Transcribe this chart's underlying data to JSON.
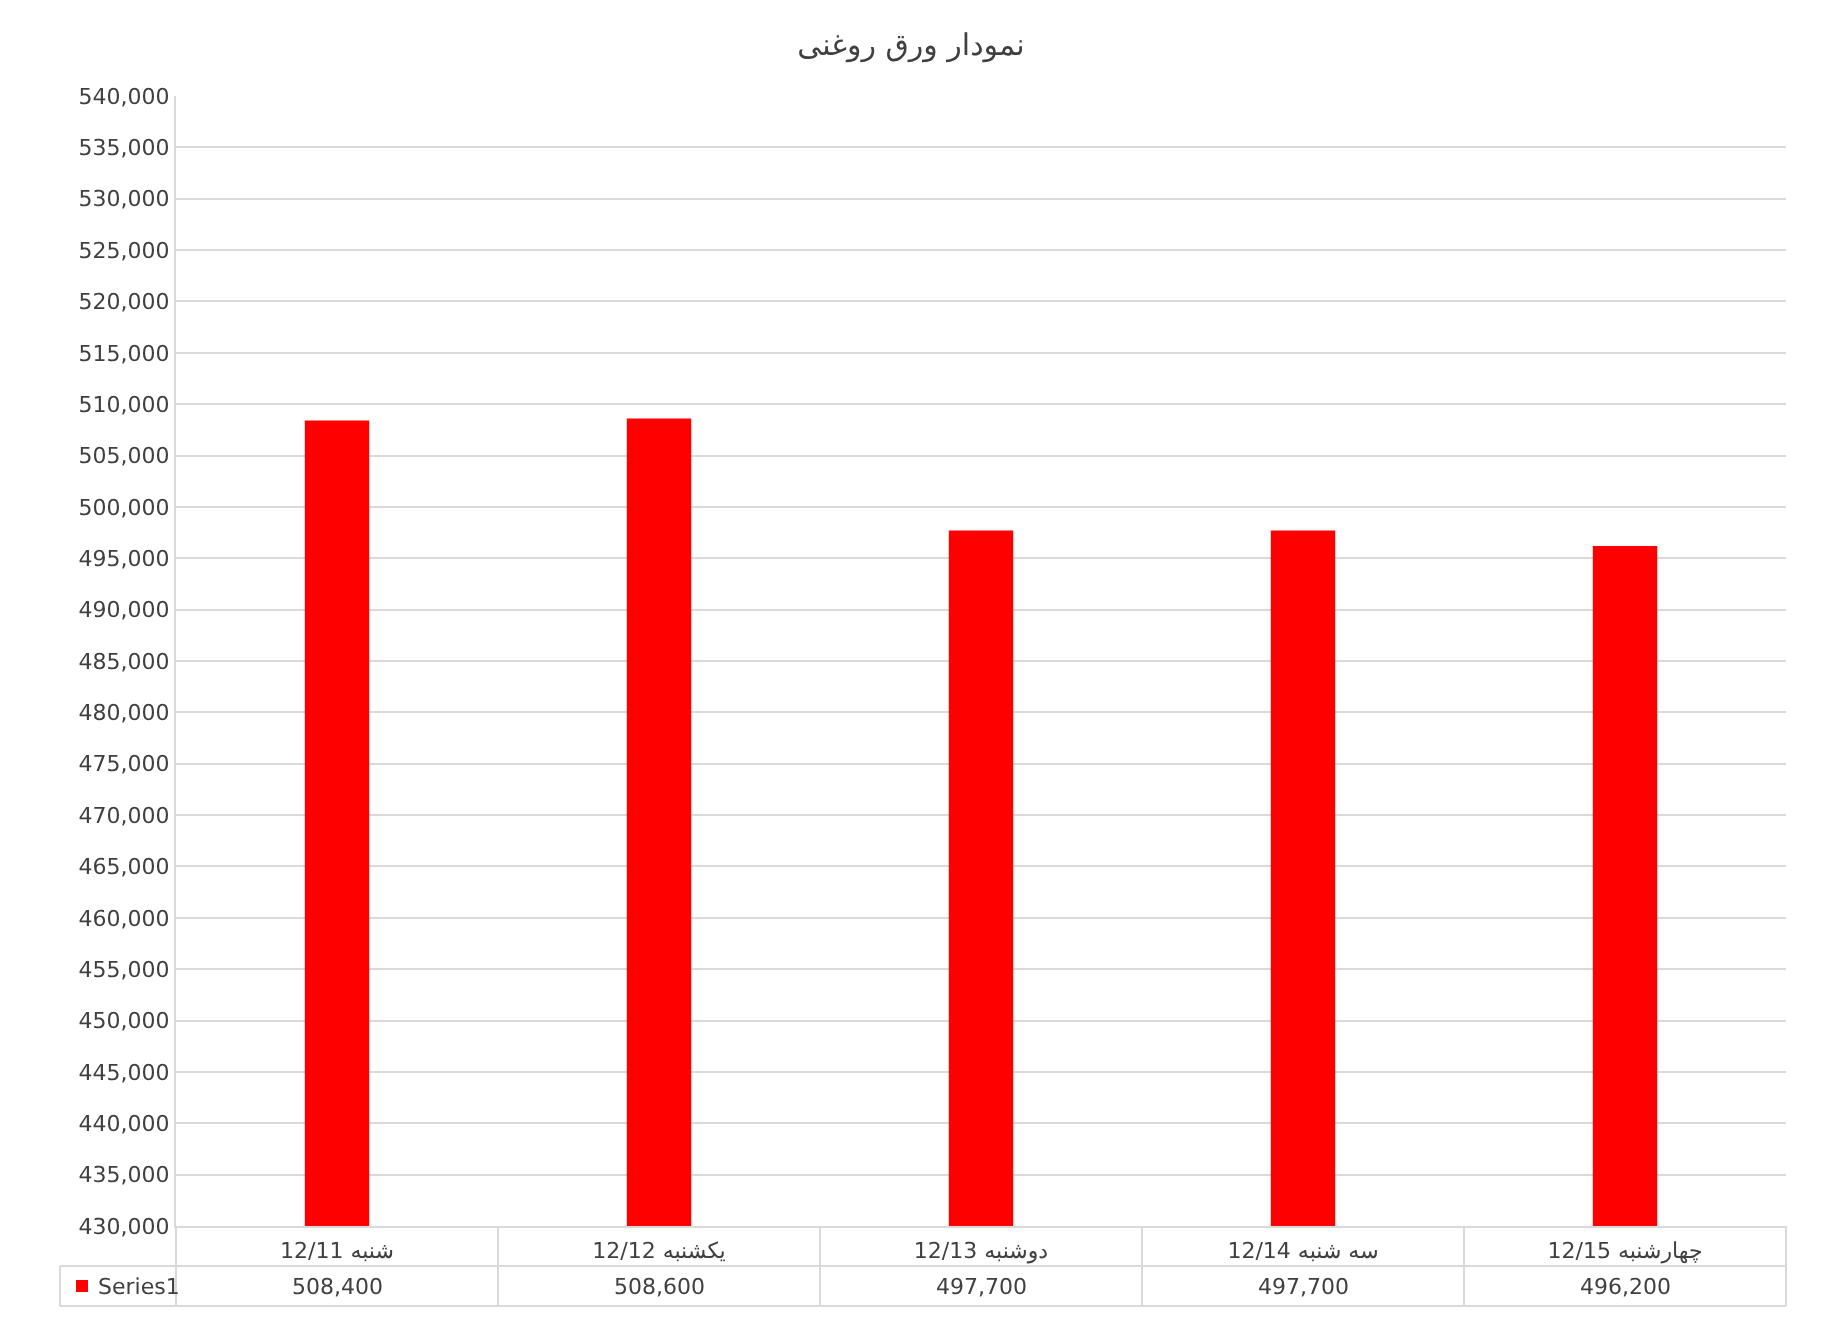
{
  "chart_data": {
    "type": "bar",
    "title": "نمودار ورق روغنی",
    "categories": [
      "12/11 شنبه",
      "12/12 یکشنبه",
      "12/13 دوشنبه",
      "12/14 سه شنبه",
      "12/15 چهارشنبه"
    ],
    "series": [
      {
        "name": "Series1",
        "color": "#ff0000",
        "values": [
          508400,
          508600,
          497700,
          497700,
          496200
        ],
        "value_labels": [
          "508,400",
          "508,600",
          "497,700",
          "497,700",
          "496,200"
        ]
      }
    ],
    "ylim": [
      430000,
      540000
    ],
    "yticks": [
      {
        "value": 430000,
        "label": "430,000"
      },
      {
        "value": 435000,
        "label": "435,000"
      },
      {
        "value": 440000,
        "label": "440,000"
      },
      {
        "value": 445000,
        "label": "445,000"
      },
      {
        "value": 450000,
        "label": "450,000"
      },
      {
        "value": 455000,
        "label": "455,000"
      },
      {
        "value": 460000,
        "label": "460,000"
      },
      {
        "value": 465000,
        "label": "465,000"
      },
      {
        "value": 470000,
        "label": "470,000"
      },
      {
        "value": 475000,
        "label": "475,000"
      },
      {
        "value": 480000,
        "label": "480,000"
      },
      {
        "value": 485000,
        "label": "485,000"
      },
      {
        "value": 490000,
        "label": "490,000"
      },
      {
        "value": 495000,
        "label": "495,000"
      },
      {
        "value": 500000,
        "label": "500,000"
      },
      {
        "value": 505000,
        "label": "505,000"
      },
      {
        "value": 510000,
        "label": "510,000"
      },
      {
        "value": 515000,
        "label": "515,000"
      },
      {
        "value": 520000,
        "label": "520,000"
      },
      {
        "value": 525000,
        "label": "525,000"
      },
      {
        "value": 530000,
        "label": "530,000"
      },
      {
        "value": 535000,
        "label": "535,000"
      },
      {
        "value": 540000,
        "label": "540,000"
      }
    ],
    "grid": "y"
  }
}
